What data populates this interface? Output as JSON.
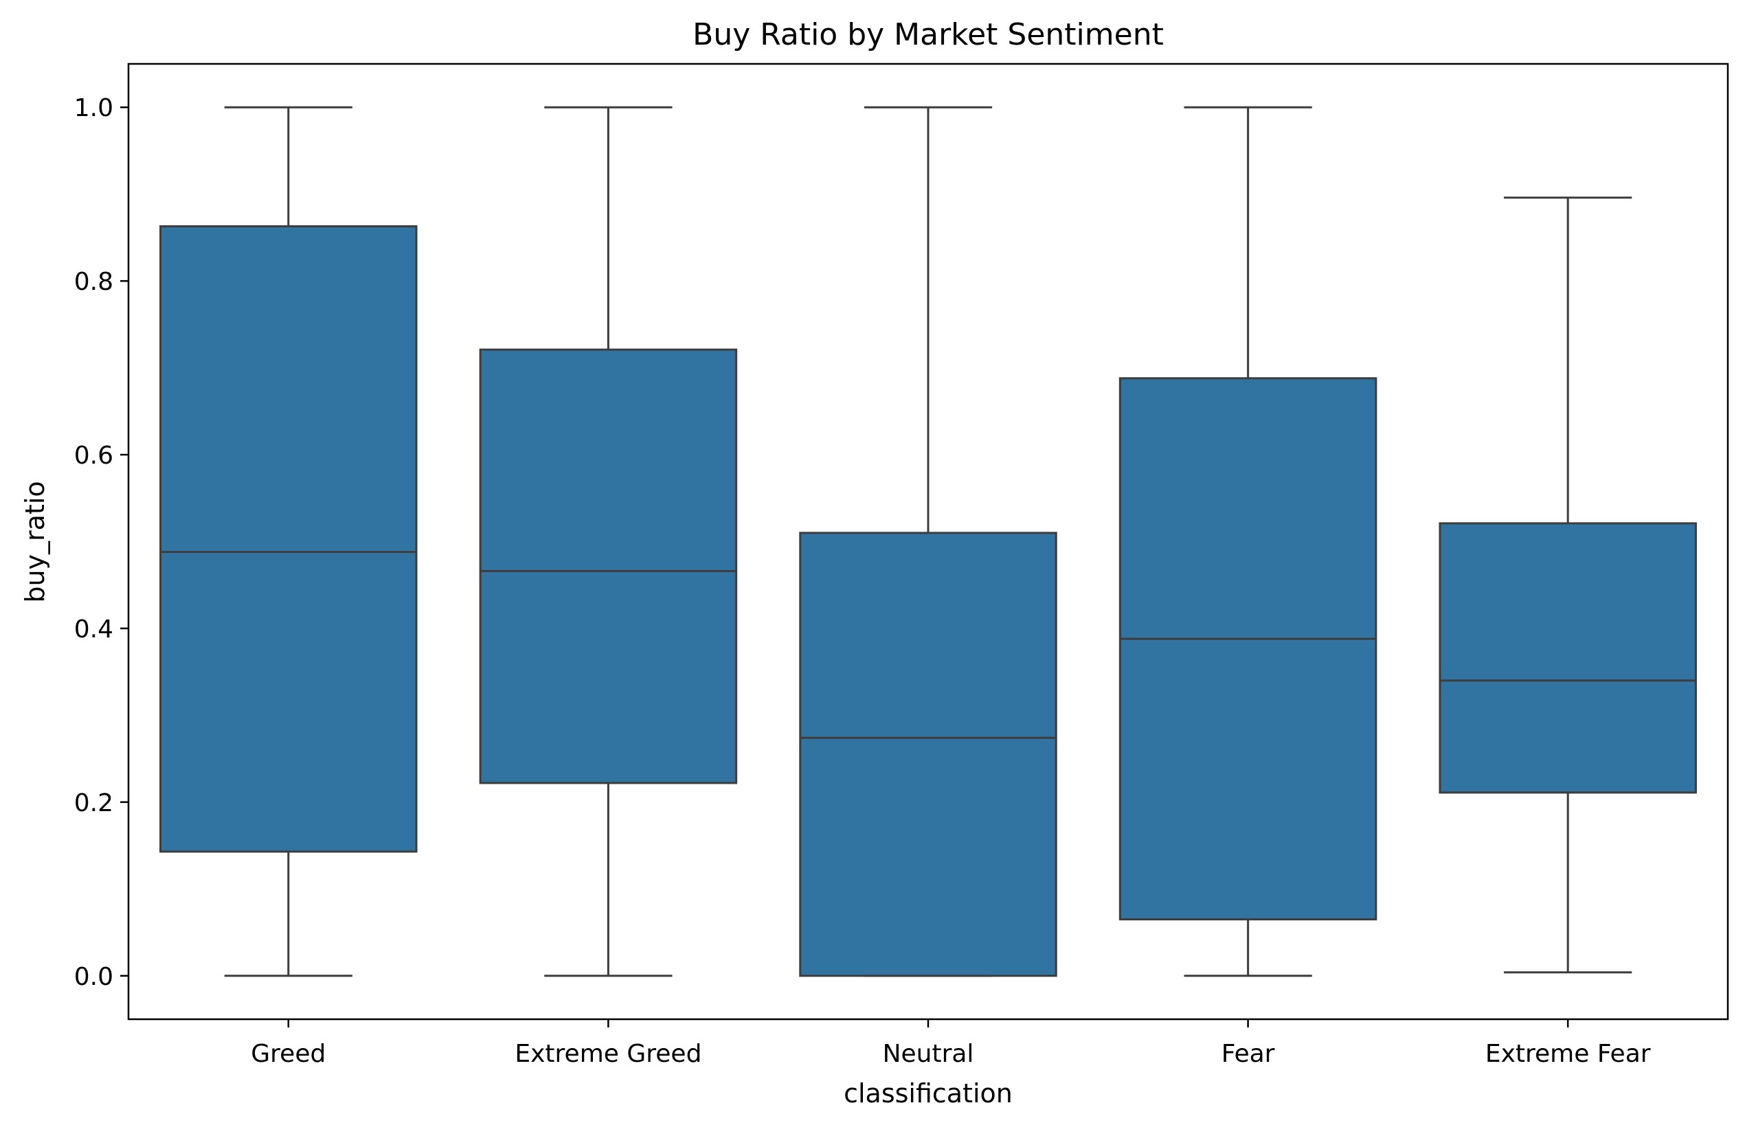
{
  "chart_data": {
    "type": "box",
    "title": "Buy Ratio by Market Sentiment",
    "xlabel": "classification",
    "ylabel": "buy_ratio",
    "ylim": [
      -0.05,
      1.05
    ],
    "yticks": [
      "0.0",
      "0.2",
      "0.4",
      "0.6",
      "0.8",
      "1.0"
    ],
    "ytick_values": [
      0.0,
      0.2,
      0.4,
      0.6,
      0.8,
      1.0
    ],
    "grid": false,
    "box_color": "#3274a1",
    "line_color": "#3d3d3d",
    "categories": [
      "Greed",
      "Extreme Greed",
      "Neutral",
      "Fear",
      "Extreme Fear"
    ],
    "boxes": [
      {
        "category": "Greed",
        "whisker_low": 0.0,
        "q1": 0.143,
        "median": 0.488,
        "q3": 0.863,
        "whisker_high": 1.0
      },
      {
        "category": "Extreme Greed",
        "whisker_low": 0.0,
        "q1": 0.222,
        "median": 0.466,
        "q3": 0.721,
        "whisker_high": 1.0
      },
      {
        "category": "Neutral",
        "whisker_low": 0.0,
        "q1": 0.0,
        "median": 0.274,
        "q3": 0.51,
        "whisker_high": 1.0
      },
      {
        "category": "Fear",
        "whisker_low": 0.0,
        "q1": 0.065,
        "median": 0.388,
        "q3": 0.688,
        "whisker_high": 1.0
      },
      {
        "category": "Extreme Fear",
        "whisker_low": 0.004,
        "q1": 0.211,
        "median": 0.34,
        "q3": 0.521,
        "whisker_high": 0.896
      }
    ]
  }
}
